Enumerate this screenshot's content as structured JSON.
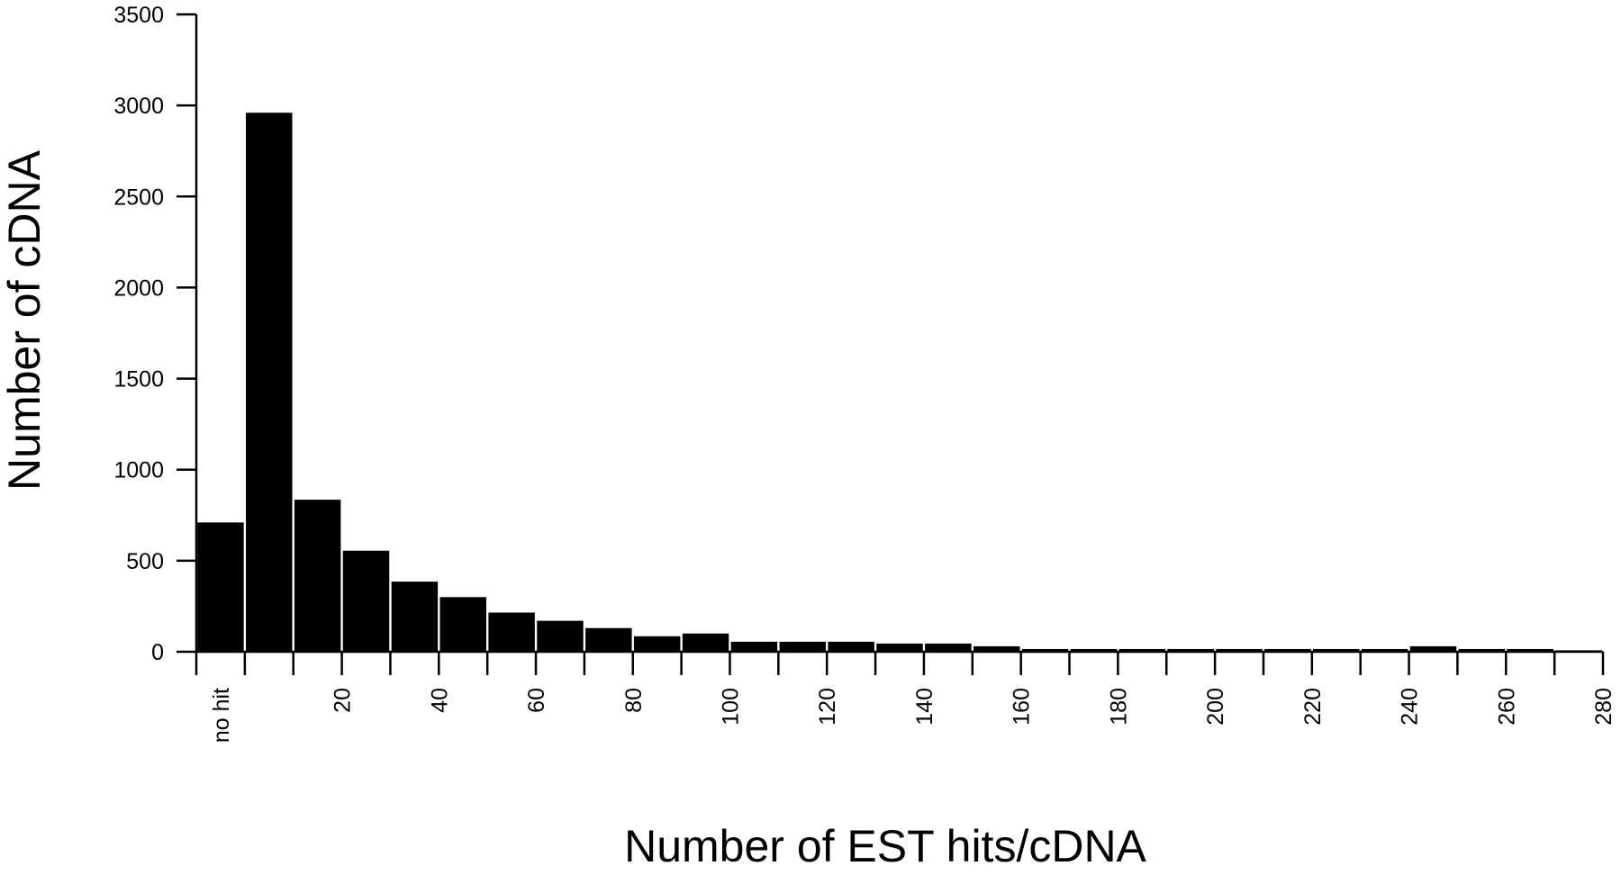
{
  "chart_data": {
    "type": "bar",
    "title": "",
    "xlabel": "Number of EST hits/cDNA",
    "ylabel": "Number of cDNA",
    "ylim": [
      0,
      3500
    ],
    "yticks": [
      0,
      500,
      1000,
      1500,
      2000,
      2500,
      3000,
      3500
    ],
    "xlim": [
      -10,
      280
    ],
    "xticks": [
      20,
      40,
      60,
      80,
      100,
      120,
      140,
      160,
      180,
      200,
      220,
      240,
      260,
      280
    ],
    "no_hit_label": "no hit",
    "bin_width": 10,
    "grid": false,
    "legend": "none",
    "bar_color": "#000000",
    "categories": [
      "no hit",
      "0-10",
      "10-20",
      "20-30",
      "30-40",
      "40-50",
      "50-60",
      "60-70",
      "70-80",
      "80-90",
      "90-100",
      "100-110",
      "110-120",
      "120-130",
      "130-140",
      "140-150",
      "150-160",
      "160-170",
      "170-180",
      "180-190",
      "190-200",
      "200-210",
      "210-220",
      "220-230",
      "230-240",
      "240-250",
      "250-260",
      "260-270",
      "270-280"
    ],
    "bin_start": [
      -10,
      0,
      10,
      20,
      30,
      40,
      50,
      60,
      70,
      80,
      90,
      100,
      110,
      120,
      130,
      140,
      150,
      160,
      170,
      180,
      190,
      200,
      210,
      220,
      230,
      240,
      250,
      260,
      270
    ],
    "values": [
      710,
      2960,
      835,
      555,
      385,
      300,
      215,
      170,
      130,
      85,
      100,
      55,
      55,
      55,
      45,
      45,
      30,
      15,
      15,
      15,
      15,
      15,
      15,
      15,
      15,
      30,
      15,
      15,
      8
    ]
  }
}
